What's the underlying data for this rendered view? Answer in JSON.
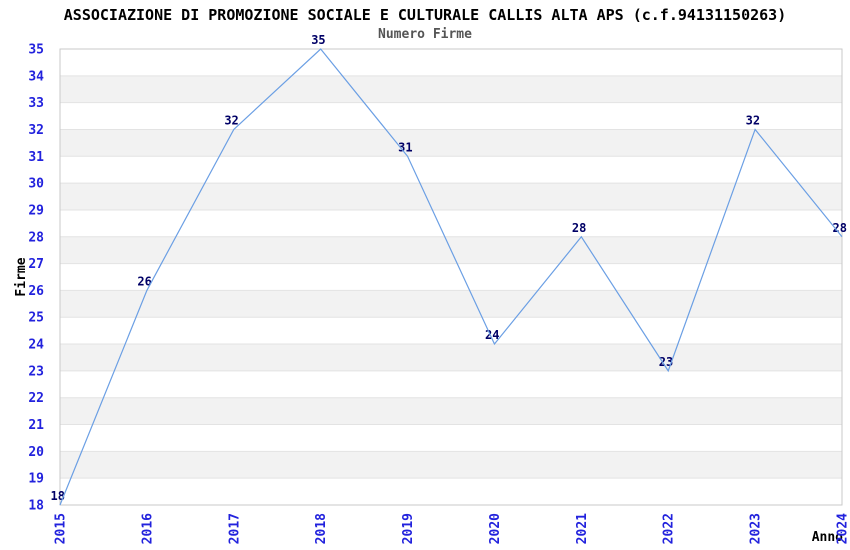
{
  "chart_data": {
    "type": "line",
    "title": "ASSOCIAZIONE DI PROMOZIONE SOCIALE E CULTURALE CALLIS ALTA APS (c.f.94131150263)",
    "subtitle": "Numero Firme",
    "xlabel": "Anno",
    "ylabel": "Firme",
    "x": [
      2015,
      2016,
      2017,
      2018,
      2019,
      2020,
      2021,
      2022,
      2023,
      2024
    ],
    "series": [
      {
        "name": "Numero Firme",
        "values": [
          18,
          26,
          32,
          35,
          31,
          24,
          28,
          23,
          32,
          28
        ]
      }
    ],
    "point_labels": [
      "18",
      "26",
      "32",
      "35",
      "31",
      "24",
      "28",
      "23",
      "32",
      "28"
    ],
    "ylim": [
      18,
      35
    ],
    "ytick_step": 1,
    "yticks": [
      18,
      19,
      20,
      21,
      22,
      23,
      24,
      25,
      26,
      27,
      28,
      29,
      30,
      31,
      32,
      33,
      34,
      35
    ],
    "grid": "horizontal-only",
    "background_bands": "alternating white / light gray between gridlines",
    "legend": "none",
    "colors": {
      "line": "#6b9fe4",
      "axis_tick_labels": "#2222dd",
      "point_labels": "#000066",
      "title": "#000000",
      "subtitle": "#555555",
      "band_gray": "#f2f2f2",
      "gridline": "#e3e3e3",
      "plot_border": "#c9c9c9",
      "axis_name_labels": "#000000"
    }
  }
}
